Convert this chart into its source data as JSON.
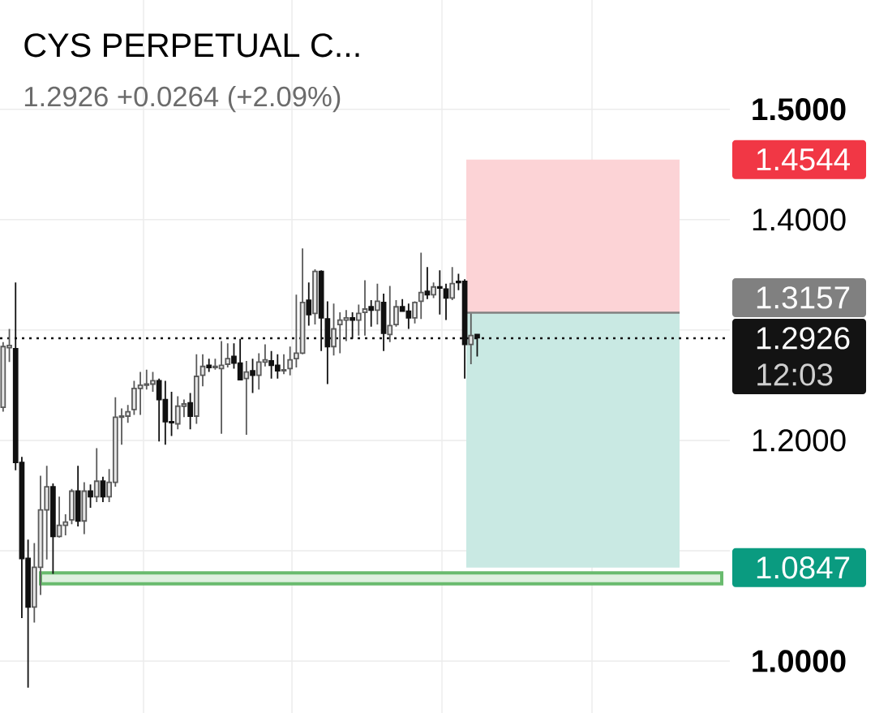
{
  "chart_data": {
    "type": "candlestick",
    "title": "CYS PERPETUAL C...",
    "subtitle": "1.2926  +0.0264 (+2.09%)",
    "categories": [
      null,
      null,
      null,
      null,
      null,
      null,
      null,
      null,
      null,
      null,
      null,
      null,
      null,
      null,
      null,
      null,
      null,
      null,
      null,
      null,
      null,
      null,
      null,
      null,
      null,
      null,
      null,
      null,
      null,
      null,
      null,
      null,
      null,
      null,
      null,
      null,
      null,
      null,
      null,
      null,
      null,
      null,
      null,
      null,
      null,
      null,
      null,
      null,
      null,
      null,
      null,
      null,
      null,
      null,
      null,
      null,
      null,
      null,
      null,
      null,
      null,
      null,
      null,
      null,
      null,
      null,
      null,
      null,
      null,
      null,
      null,
      null,
      null,
      null,
      null,
      null,
      null,
      null,
      null,
      null,
      null,
      null,
      null,
      null,
      null,
      null,
      null,
      null,
      null,
      null,
      null,
      null,
      null,
      null,
      null,
      null,
      null,
      null,
      null,
      null,
      null,
      null,
      null,
      null,
      null,
      null,
      null,
      null,
      null,
      null,
      null,
      null,
      null,
      null,
      null,
      null,
      null
    ],
    "ohlc": [
      [
        1.23,
        1.289,
        1.226,
        1.285
      ],
      [
        1.284,
        1.301,
        1.271,
        1.286
      ],
      [
        1.283,
        1.343,
        1.173,
        1.18
      ],
      [
        1.18,
        1.185,
        1.039,
        1.093
      ],
      [
        1.093,
        1.11,
        0.976,
        1.049
      ],
      [
        1.049,
        1.107,
        1.035,
        1.085
      ],
      [
        1.085,
        1.168,
        1.06,
        1.137
      ],
      [
        1.137,
        1.177,
        1.092,
        1.158
      ],
      [
        1.158,
        1.161,
        1.079,
        1.113
      ],
      [
        1.113,
        1.149,
        1.112,
        1.123
      ],
      [
        1.123,
        1.133,
        1.114,
        1.126
      ],
      [
        1.128,
        1.156,
        1.124,
        1.154
      ],
      [
        1.154,
        1.177,
        1.122,
        1.127
      ],
      [
        1.127,
        1.162,
        1.115,
        1.154
      ],
      [
        1.154,
        1.16,
        1.139,
        1.149
      ],
      [
        1.149,
        1.193,
        1.144,
        1.163
      ],
      [
        1.163,
        1.167,
        1.144,
        1.149
      ],
      [
        1.149,
        1.174,
        1.144,
        1.162
      ],
      [
        1.162,
        1.239,
        1.158,
        1.221
      ],
      [
        1.221,
        1.229,
        1.196,
        1.222
      ],
      [
        1.222,
        1.232,
        1.216,
        1.226
      ],
      [
        1.228,
        1.254,
        1.223,
        1.247
      ],
      [
        1.247,
        1.262,
        1.223,
        1.25
      ],
      [
        1.25,
        1.264,
        1.246,
        1.251
      ],
      [
        1.251,
        1.262,
        1.244,
        1.254
      ],
      [
        1.254,
        1.256,
        1.199,
        1.237
      ],
      [
        1.237,
        1.254,
        1.196,
        1.217
      ],
      [
        1.217,
        1.244,
        1.204,
        1.216
      ],
      [
        1.215,
        1.24,
        1.21,
        1.231
      ],
      [
        1.231,
        1.237,
        1.221,
        1.233
      ],
      [
        1.234,
        1.243,
        1.21,
        1.222
      ],
      [
        1.222,
        1.278,
        1.215,
        1.258
      ],
      [
        1.259,
        1.278,
        1.249,
        1.267
      ],
      [
        1.268,
        1.274,
        1.262,
        1.266
      ],
      [
        1.266,
        1.274,
        1.264,
        1.267
      ],
      [
        1.265,
        1.29,
        1.206,
        1.268
      ],
      [
        1.269,
        1.288,
        1.266,
        1.274
      ],
      [
        1.276,
        1.288,
        1.265,
        1.27
      ],
      [
        1.27,
        1.292,
        1.255,
        1.255
      ],
      [
        1.256,
        1.272,
        1.205,
        1.262
      ],
      [
        1.263,
        1.274,
        1.243,
        1.259
      ],
      [
        1.259,
        1.279,
        1.246,
        1.271
      ],
      [
        1.271,
        1.287,
        1.267,
        1.273
      ],
      [
        1.272,
        1.281,
        1.256,
        1.268
      ],
      [
        1.268,
        1.278,
        1.256,
        1.263
      ],
      [
        1.263,
        1.278,
        1.26,
        1.264
      ],
      [
        1.265,
        1.285,
        1.259,
        1.273
      ],
      [
        1.274,
        1.332,
        1.266,
        1.279
      ],
      [
        1.279,
        1.374,
        1.278,
        1.325
      ],
      [
        1.327,
        1.343,
        1.304,
        1.314
      ],
      [
        1.315,
        1.355,
        1.305,
        1.353
      ],
      [
        1.353,
        1.354,
        1.281,
        1.311
      ],
      [
        1.31,
        1.326,
        1.251,
        1.285
      ],
      [
        1.285,
        1.324,
        1.277,
        1.301
      ],
      [
        1.305,
        1.316,
        1.279,
        1.309
      ],
      [
        1.309,
        1.318,
        1.29,
        1.311
      ],
      [
        1.311,
        1.316,
        1.292,
        1.309
      ],
      [
        1.309,
        1.323,
        1.295,
        1.315
      ],
      [
        1.316,
        1.345,
        1.295,
        1.319
      ],
      [
        1.321,
        1.327,
        1.303,
        1.318
      ],
      [
        1.318,
        1.342,
        1.305,
        1.326
      ],
      [
        1.325,
        1.333,
        1.281,
        1.297
      ],
      [
        1.296,
        1.34,
        1.289,
        1.304
      ],
      [
        1.305,
        1.327,
        1.303,
        1.321
      ],
      [
        1.321,
        1.328,
        1.317,
        1.317
      ],
      [
        1.317,
        1.324,
        1.301,
        1.311
      ],
      [
        1.311,
        1.326,
        1.306,
        1.325
      ],
      [
        1.326,
        1.37,
        1.31,
        1.334
      ],
      [
        1.335,
        1.357,
        1.328,
        1.332
      ],
      [
        1.332,
        1.343,
        1.329,
        1.339
      ],
      [
        1.339,
        1.354,
        1.314,
        1.338
      ],
      [
        1.337,
        1.342,
        1.309,
        1.329
      ],
      [
        1.329,
        1.357,
        1.327,
        1.342
      ],
      [
        1.344,
        1.351,
        1.336,
        1.343
      ],
      [
        1.344,
        1.346,
        1.256,
        1.287
      ],
      [
        1.287,
        1.315,
        1.269,
        1.295
      ],
      [
        1.296,
        1.296,
        1.276,
        1.293
      ],
      null,
      null,
      null,
      null,
      null,
      null,
      null,
      null,
      null,
      null,
      null,
      null,
      null,
      null,
      null,
      null,
      null,
      null,
      null,
      null,
      null,
      null,
      null,
      null,
      null,
      null,
      null,
      null,
      null,
      null,
      null,
      null,
      null,
      null,
      null,
      null,
      null,
      null,
      null,
      null
    ],
    "ylim": [
      0.953,
      1.599
    ],
    "yticks": [
      {
        "value": 1.0,
        "label": "1.0000"
      },
      {
        "value": 1.1,
        "label": null
      },
      {
        "value": 1.2,
        "label": "1.2000"
      },
      {
        "value": 1.3,
        "label": null
      },
      {
        "value": 1.4,
        "label": "1.4000"
      },
      {
        "value": 1.5,
        "label": "1.5000"
      }
    ],
    "grid": "y",
    "tick_labels": "y",
    "bands": [
      {
        "axis": "y",
        "from": 1.3157,
        "to": 1.4544,
        "label": "1.4544",
        "color": "#fcd3d6"
      },
      {
        "axis": "y",
        "from": 1.3157,
        "to": 1.0847,
        "label": "1.0847",
        "color": "#c9e9e3"
      },
      {
        "axis": "y",
        "from": 1.07,
        "to": 1.08,
        "color": "#def0df"
      }
    ],
    "ref_lines": [
      {
        "axis": "y",
        "value": 1.3157,
        "label": "1.3157",
        "color": "#808080"
      },
      {
        "axis": "y",
        "value": 1.2926,
        "label": "1.2926",
        "color": "#131313",
        "line_style": "dotted"
      }
    ],
    "annotations": [
      "12:03"
    ]
  }
}
